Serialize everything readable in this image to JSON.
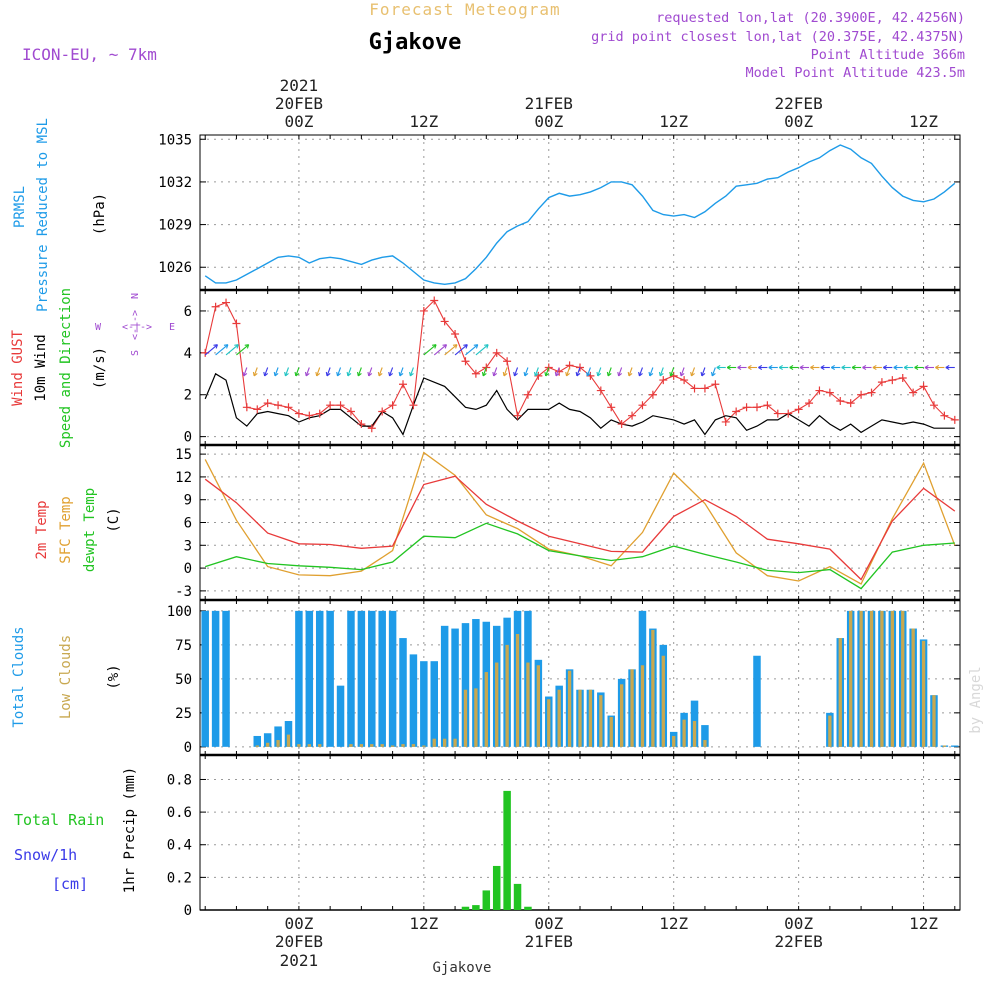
{
  "header": {
    "title": "Forecast Meteogram",
    "location": "Gjakove",
    "model": "ICON-EU, ~ 7km",
    "requested": "requested lon,lat (20.3900E, 42.4256N)",
    "grid_point": "grid point closest lon,lat (20.375E, 42.4375N)",
    "point_altitude": "Point Altitude 366m",
    "model_altitude": "Model Point Altitude 423.5m",
    "footer_location": "Gjakove",
    "watermark": "by Angel"
  },
  "time_axis": {
    "top_year": "2021",
    "bottom_year": "2021",
    "ticks": [
      {
        "label": "00Z",
        "date": "20FEB"
      },
      {
        "label": "12Z",
        "date": ""
      },
      {
        "label": "00Z",
        "date": "21FEB"
      },
      {
        "label": "12Z",
        "date": ""
      },
      {
        "label": "00Z",
        "date": "22FEB"
      },
      {
        "label": "12Z",
        "date": ""
      }
    ]
  },
  "panel_labels": {
    "pressure": {
      "l1": "PRMSL",
      "l2": "Pressure Reduced to MSL",
      "unit": "(hPa)"
    },
    "wind": {
      "l1": "Wind GUST",
      "l2": "10m Wind",
      "l3": "Speed and Direction",
      "unit": "(m/s)"
    },
    "compass": {
      "n": "N",
      "s": "S",
      "w": "W",
      "e": "E",
      "arrow": "<-|->"
    },
    "temp": {
      "l1": "2m Temp",
      "l2": "SFC Temp",
      "l3": "dewpt Temp",
      "unit": "(C)"
    },
    "clouds": {
      "l1": "Total Clouds",
      "l2": "Low Clouds",
      "unit": "(%)"
    },
    "precip": {
      "l1": "Total Rain",
      "l2": "Snow/1h",
      "l3": "[cm]",
      "unit": "1hr Precip (mm)"
    }
  },
  "colors": {
    "pressure": "#1e9be8",
    "gust": "#e83a3a",
    "wind": "#000000",
    "sfc": "#e0a030",
    "dewpt": "#22c422",
    "total_cloud": "#1e9be8",
    "low_cloud": "#c8a850",
    "rain": "#22c422",
    "snow": "#3a3ae8",
    "header": "#a04ad0",
    "title": "#e8c070"
  },
  "chart_data": [
    {
      "type": "line",
      "name": "pressure",
      "x_hours_from_20FEB00Z": [
        -9,
        -8,
        -7,
        -6,
        -5,
        -4,
        -3,
        -2,
        -1,
        0,
        1,
        2,
        3,
        4,
        5,
        6,
        7,
        8,
        9,
        10,
        11,
        12,
        13,
        14,
        15,
        16,
        17,
        18,
        19,
        20,
        21,
        22,
        23,
        24,
        25,
        26,
        27,
        28,
        29,
        30,
        31,
        32,
        33,
        34,
        35,
        36,
        37,
        38,
        39,
        40,
        41,
        42,
        43,
        44,
        45,
        46,
        47,
        48,
        49,
        50,
        51,
        52,
        53,
        54,
        55,
        56,
        57,
        58,
        59,
        60,
        61,
        62,
        63
      ],
      "values": [
        1025.4,
        1024.9,
        1024.9,
        1025.1,
        1025.5,
        1025.9,
        1026.3,
        1026.7,
        1026.8,
        1026.7,
        1026.3,
        1026.6,
        1026.7,
        1026.6,
        1026.4,
        1026.2,
        1026.5,
        1026.7,
        1026.8,
        1026.3,
        1025.7,
        1025.1,
        1024.9,
        1024.8,
        1024.9,
        1025.2,
        1025.9,
        1026.7,
        1027.7,
        1028.5,
        1028.9,
        1029.2,
        1030.1,
        1030.9,
        1031.2,
        1031.0,
        1031.1,
        1031.3,
        1031.6,
        1032.0,
        1032.0,
        1031.8,
        1031.0,
        1030.0,
        1029.7,
        1029.6,
        1029.7,
        1029.5,
        1029.9,
        1030.5,
        1031.0,
        1031.7,
        1031.8,
        1031.9,
        1032.2,
        1032.3,
        1032.7,
        1033.0,
        1033.4,
        1033.7,
        1034.2,
        1034.6,
        1034.3,
        1033.7,
        1033.3,
        1032.4,
        1031.6,
        1031.0,
        1030.7,
        1030.6,
        1030.8,
        1031.3,
        1031.9
      ]
    },
    {
      "type": "line",
      "name": "wind",
      "ylim": [
        0,
        7
      ],
      "x_hours_from_20FEB00Z": [
        -9,
        -8,
        -7,
        -6,
        -5,
        -4,
        -3,
        -2,
        -1,
        0,
        1,
        2,
        3,
        4,
        5,
        6,
        7,
        8,
        9,
        10,
        11,
        12,
        13,
        14,
        15,
        16,
        17,
        18,
        19,
        20,
        21,
        22,
        23,
        24,
        25,
        26,
        27,
        28,
        29,
        30,
        31,
        32,
        33,
        34,
        35,
        36,
        37,
        38,
        39,
        40,
        41,
        42,
        43,
        44,
        45,
        46,
        47,
        48,
        49,
        50,
        51,
        52,
        53,
        54,
        55,
        56,
        57,
        58,
        59,
        60,
        61,
        62,
        63
      ],
      "gust": [
        4.0,
        6.2,
        6.4,
        5.4,
        1.4,
        1.3,
        1.6,
        1.5,
        1.4,
        1.1,
        1.0,
        1.1,
        1.5,
        1.5,
        1.2,
        0.6,
        0.4,
        1.2,
        1.5,
        2.5,
        1.5,
        6.0,
        6.5,
        5.5,
        4.9,
        3.6,
        3.0,
        3.3,
        4.0,
        3.6,
        1.0,
        2.0,
        2.9,
        3.3,
        3.1,
        3.4,
        3.3,
        2.9,
        2.2,
        1.4,
        0.6,
        1.0,
        1.5,
        2.0,
        2.7,
        2.9,
        2.7,
        2.3,
        2.3,
        2.5,
        0.7,
        1.2,
        1.4,
        1.4,
        1.5,
        1.1,
        1.1,
        1.3,
        1.6,
        2.2,
        2.1,
        1.7,
        1.6,
        2.0,
        2.1,
        2.6,
        2.7,
        2.8,
        2.1,
        2.4,
        1.5,
        1.0,
        0.8
      ],
      "speed": [
        1.8,
        3.0,
        2.7,
        0.9,
        0.5,
        1.1,
        1.2,
        1.1,
        1.0,
        0.7,
        0.9,
        1.0,
        1.3,
        1.3,
        0.9,
        0.5,
        0.5,
        1.2,
        0.9,
        0.1,
        1.5,
        2.8,
        2.6,
        2.4,
        1.9,
        1.4,
        1.3,
        1.5,
        2.2,
        1.3,
        0.8,
        1.3,
        1.3,
        1.3,
        1.6,
        1.3,
        1.2,
        0.9,
        0.4,
        0.8,
        0.6,
        0.5,
        0.7,
        1.0,
        0.9,
        0.8,
        0.6,
        0.8,
        0.1,
        0.8,
        1.0,
        0.9,
        0.3,
        0.5,
        0.8,
        0.8,
        1.1,
        0.8,
        0.5,
        1.0,
        0.6,
        0.3,
        0.6,
        0.2,
        0.5,
        0.8,
        0.7,
        0.6,
        0.7,
        0.6,
        0.4,
        0.4,
        0.4
      ]
    },
    {
      "type": "line",
      "name": "temperature",
      "ylim": [
        -4,
        16
      ],
      "x_hours_from_20FEB00Z": [
        -9,
        -6,
        -3,
        0,
        3,
        6,
        9,
        12,
        15,
        18,
        21,
        24,
        27,
        30,
        33,
        36,
        39,
        42,
        45,
        48,
        51,
        54,
        57,
        60,
        63
      ],
      "t2m": [
        11.7,
        8.6,
        4.6,
        3.2,
        3.1,
        2.6,
        2.9,
        11.0,
        12.1,
        8.4,
        6.2,
        4.2,
        3.2,
        2.2,
        2.1,
        6.8,
        9.0,
        6.8,
        3.8,
        3.2,
        2.5,
        -1.5,
        6.2,
        10.5,
        7.5
      ],
      "sfc": [
        14.3,
        6.3,
        0.2,
        -0.9,
        -1.0,
        -0.4,
        2.3,
        15.2,
        12.2,
        7.0,
        5.2,
        2.5,
        1.6,
        0.3,
        4.7,
        12.5,
        8.5,
        2.0,
        -1.0,
        -1.7,
        0.2,
        -2.1,
        6.5,
        13.8,
        3.0
      ],
      "dewpt": [
        0.2,
        1.5,
        0.6,
        0.3,
        0.1,
        -0.2,
        0.8,
        4.2,
        4.0,
        5.9,
        4.5,
        2.3,
        1.6,
        1.0,
        1.5,
        2.9,
        1.8,
        0.8,
        -0.3,
        -0.6,
        -0.2,
        -2.7,
        2.1,
        3.0,
        3.3
      ]
    },
    {
      "type": "bar",
      "name": "clouds",
      "ylim": [
        0,
        100
      ],
      "x_hours_from_20FEB00Z": [
        -9,
        -8,
        -7,
        -6,
        -5,
        -4,
        -3,
        -2,
        -1,
        0,
        1,
        2,
        3,
        4,
        5,
        6,
        7,
        8,
        9,
        10,
        11,
        12,
        13,
        14,
        15,
        16,
        17,
        18,
        19,
        20,
        21,
        22,
        23,
        24,
        25,
        26,
        27,
        28,
        29,
        30,
        31,
        32,
        33,
        34,
        35,
        36,
        37,
        38,
        39,
        40,
        41,
        42,
        43,
        44,
        45,
        46,
        47,
        48,
        49,
        50,
        51,
        52,
        53,
        54,
        55,
        56,
        57,
        58,
        59,
        60,
        61,
        62,
        63
      ],
      "total": [
        100,
        100,
        100,
        0,
        0,
        8,
        10,
        15,
        19,
        100,
        100,
        100,
        100,
        45,
        100,
        100,
        100,
        100,
        100,
        80,
        68,
        63,
        63,
        89,
        87,
        91,
        94,
        92,
        89,
        95,
        100,
        100,
        64,
        37,
        45,
        57,
        42,
        42,
        40,
        23,
        50,
        57,
        100,
        87,
        75,
        11,
        25,
        34,
        16,
        0,
        0,
        0,
        0,
        67,
        0,
        0,
        0,
        0,
        0,
        0,
        25,
        80,
        100,
        100,
        100,
        100,
        100,
        100,
        87,
        79,
        38,
        1,
        1
      ],
      "low": [
        0,
        0,
        0,
        0,
        0,
        1,
        3,
        5,
        9,
        2,
        2,
        2,
        0,
        0,
        2,
        2,
        2,
        2,
        1,
        2,
        2,
        1,
        6,
        6,
        6,
        42,
        43,
        55,
        62,
        75,
        83,
        62,
        60,
        35,
        42,
        56,
        42,
        42,
        38,
        22,
        46,
        57,
        60,
        86,
        67,
        8,
        20,
        19,
        5,
        0,
        0,
        0,
        0,
        0,
        0,
        0,
        0,
        0,
        0,
        0,
        23,
        80,
        100,
        100,
        100,
        100,
        100,
        100,
        87,
        78,
        38,
        1,
        0
      ]
    },
    {
      "type": "bar",
      "name": "precipitation",
      "ylim": [
        0,
        0.95
      ],
      "x_hours_from_20FEB00Z": [
        -9,
        -8,
        -7,
        -6,
        -5,
        -4,
        -3,
        -2,
        -1,
        0,
        1,
        2,
        3,
        4,
        5,
        6,
        7,
        8,
        9,
        10,
        11,
        12,
        13,
        14,
        15,
        16,
        17,
        18,
        19,
        20,
        21,
        22,
        23,
        24,
        25,
        26,
        27,
        28,
        29,
        30,
        31,
        32,
        33,
        34,
        35,
        36,
        37,
        38,
        39,
        40,
        41,
        42,
        43,
        44,
        45,
        46,
        47,
        48,
        49,
        50,
        51,
        52,
        53,
        54,
        55,
        56,
        57,
        58,
        59,
        60,
        61,
        62,
        63
      ],
      "rain": [
        0,
        0,
        0,
        0,
        0,
        0,
        0,
        0,
        0,
        0,
        0,
        0,
        0,
        0,
        0,
        0,
        0,
        0,
        0,
        0,
        0,
        0,
        0,
        0,
        0,
        0.02,
        0.03,
        0.12,
        0.27,
        0.73,
        0.16,
        0.02,
        0,
        0,
        0,
        0,
        0,
        0,
        0,
        0,
        0,
        0,
        0,
        0,
        0,
        0,
        0,
        0,
        0,
        0,
        0,
        0,
        0,
        0,
        0,
        0,
        0,
        0,
        0,
        0,
        0,
        0,
        0,
        0,
        0,
        0,
        0,
        0,
        0,
        0,
        0,
        0,
        0
      ]
    }
  ]
}
